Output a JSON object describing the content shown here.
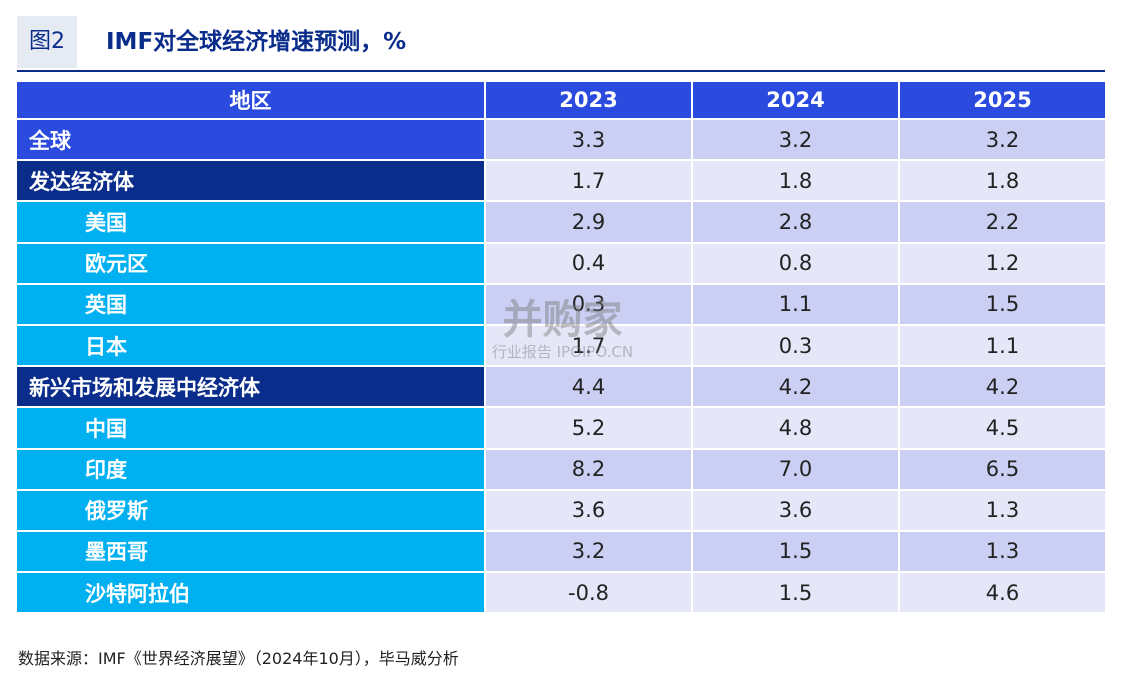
{
  "header": {
    "figure_label": "图2",
    "title": "IMF对全球经济增速预测，%"
  },
  "table": {
    "columns": [
      "地区",
      "2023",
      "2024",
      "2025"
    ],
    "rows": [
      [
        "全球",
        "3.3",
        "3.2",
        "3.2"
      ],
      [
        "发达经济体",
        "1.7",
        "1.8",
        "1.8"
      ],
      [
        "美国",
        "2.9",
        "2.8",
        "2.2"
      ],
      [
        "欧元区",
        "0.4",
        "0.8",
        "1.2"
      ],
      [
        "英国",
        "0.3",
        "1.1",
        "1.5"
      ],
      [
        "日本",
        "1.7",
        "0.3",
        "1.1"
      ],
      [
        "新兴市场和发展中经济体",
        "4.4",
        "4.2",
        "4.2"
      ],
      [
        "中国",
        "5.2",
        "4.8",
        "4.5"
      ],
      [
        "印度",
        "8.2",
        "7.0",
        "6.5"
      ],
      [
        "俄罗斯",
        "3.6",
        "3.6",
        "1.3"
      ],
      [
        "墨西哥",
        "3.2",
        "1.5",
        "1.3"
      ],
      [
        "沙特阿拉伯",
        "-0.8",
        "1.5",
        "4.6"
      ]
    ]
  },
  "watermark": {
    "title": "并购家",
    "subtitle": "行业报告 IPOIPO.CN"
  },
  "source": "数据来源：IMF《世界经济展望》（2024年10月），毕马威分析"
}
